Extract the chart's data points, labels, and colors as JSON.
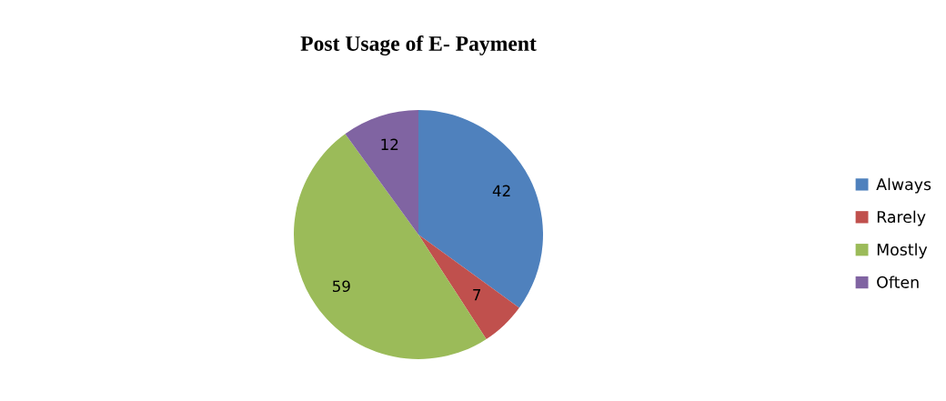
{
  "chart_data": {
    "type": "pie",
    "title": "Post Usage of E- Payment",
    "categories": [
      "Always",
      "Rarely",
      "Mostly",
      "Often"
    ],
    "values": [
      42,
      7,
      59,
      12
    ],
    "colors": [
      "#4f81bd",
      "#c0504d",
      "#9bbb59",
      "#8064a2"
    ],
    "data_labels": true,
    "legend": "right"
  }
}
